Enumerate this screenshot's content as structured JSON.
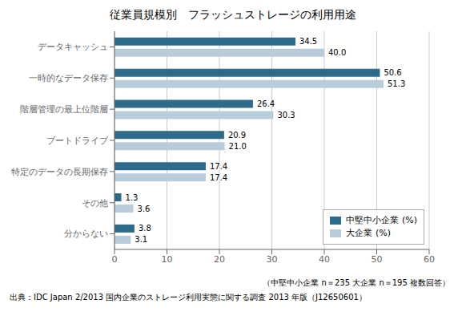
{
  "chart_data": {
    "type": "bar",
    "orientation": "horizontal",
    "title": "従業員規模別　フラッシュストレージの利用用途",
    "categories": [
      "データキャッシュ",
      "一時的なデータ保存",
      "階層管理の最上位階層",
      "ブートドライブ",
      "特定のデータの長期保存",
      "その他",
      "分からない"
    ],
    "series": [
      {
        "name": "中堅中小企業 (%)",
        "color": "#2e6b8a",
        "values": [
          34.5,
          50.6,
          26.4,
          20.9,
          17.4,
          1.3,
          3.8
        ],
        "value_labels": [
          "34.5",
          "50.6",
          "26.4",
          "20.9",
          "17.4",
          "1.3",
          "3.8"
        ]
      },
      {
        "name": "大企業 (%)",
        "color": "#b8cdd9",
        "values": [
          40.0,
          51.3,
          30.3,
          21.0,
          17.4,
          3.6,
          3.1
        ],
        "value_labels": [
          "40.0",
          "51.3",
          "30.3",
          "21.0",
          "17.4",
          "3.6",
          "3.1"
        ]
      }
    ],
    "xlim": [
      0,
      60
    ],
    "xticks": [
      0,
      10,
      20,
      30,
      40,
      50,
      60
    ],
    "grid": true,
    "legend": "lower right",
    "data_labels": true,
    "annotations": [
      "（中堅中小企業 n＝235  大企業 n＝195  複数回答）",
      "出典：IDC Japan 2/2013 国内企業のストレージ利用実態に関する調査 2013 年版（J12650601）"
    ]
  }
}
